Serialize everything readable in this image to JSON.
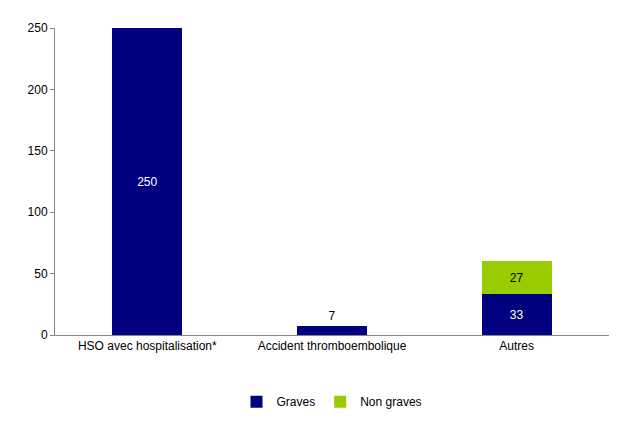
{
  "chart_data": {
    "type": "bar",
    "categories": [
      "HSO avec hospitalisation*",
      "Accident thromboembolique",
      "Autres"
    ],
    "series": [
      {
        "name": "Graves",
        "color": "#000080",
        "values": [
          250,
          7,
          33
        ]
      },
      {
        "name": "Non graves",
        "color": "#99cc00",
        "values": [
          null,
          null,
          27
        ]
      }
    ],
    "ylim": [
      0,
      250
    ],
    "yticks": [
      0,
      50,
      100,
      150,
      200,
      250
    ],
    "stacked": true,
    "data_labels": true,
    "legend": "bottom",
    "grid": false
  }
}
